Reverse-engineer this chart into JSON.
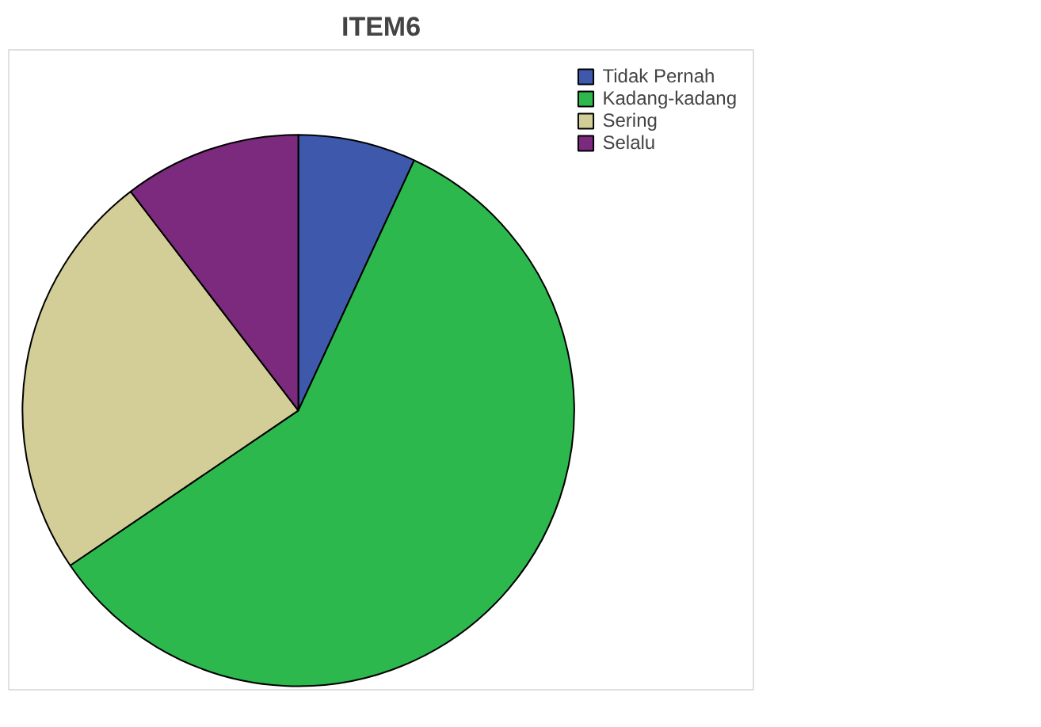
{
  "chart_data": {
    "type": "pie",
    "title": "ITEM6",
    "categories": [
      "Tidak Pernah",
      "Kadang-kadang",
      "Sering",
      "Selalu"
    ],
    "values": [
      6.9,
      58.6,
      24.1,
      10.4
    ],
    "colors": [
      "#3e58ac",
      "#2db84d",
      "#d3ce97",
      "#7b2a7d"
    ],
    "legend": "top right"
  }
}
